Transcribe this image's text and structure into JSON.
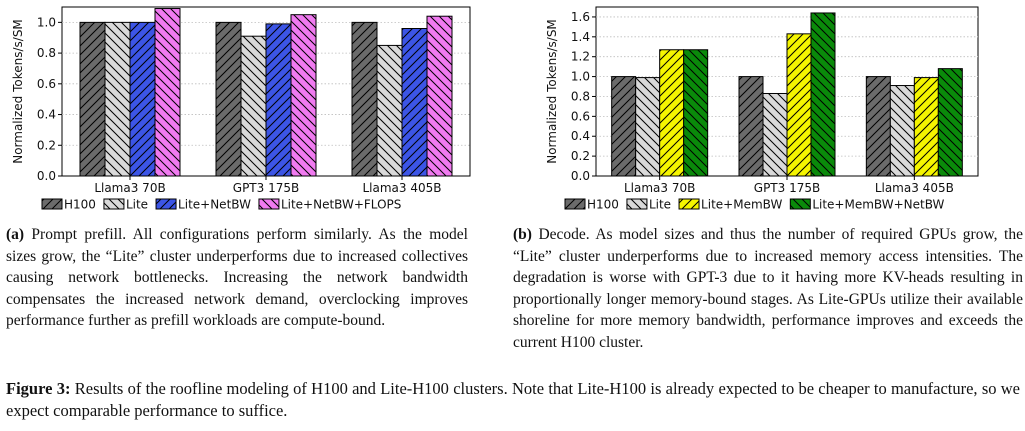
{
  "chart_data": [
    {
      "type": "bar",
      "ylabel": "Normalized Tokens/s/SM",
      "categories": [
        "Llama3 70B",
        "GPT3 175B",
        "Llama3 405B"
      ],
      "ylim": [
        0,
        1.1
      ],
      "yticks": [
        "0.0",
        "0.2",
        "0.4",
        "0.6",
        "0.8",
        "1.0"
      ],
      "ytick_values": [
        0,
        0.2,
        0.4,
        0.6,
        0.8,
        1.0
      ],
      "grid": true,
      "legend_position": "bottom",
      "series": [
        {
          "name": "H100",
          "values": [
            1.0,
            1.0,
            1.0
          ],
          "color": "#6b6b6b",
          "hatch": "/"
        },
        {
          "name": "Lite",
          "values": [
            1.0,
            0.91,
            0.85
          ],
          "color": "#d9d9d9",
          "hatch": "\\"
        },
        {
          "name": "Lite+NetBW",
          "values": [
            1.0,
            0.99,
            0.96
          ],
          "color": "#3c55e6",
          "hatch": "/"
        },
        {
          "name": "Lite+NetBW+FLOPS",
          "values": [
            1.09,
            1.05,
            1.04
          ],
          "color": "#f07af0",
          "hatch": "\\"
        }
      ]
    },
    {
      "type": "bar",
      "ylabel": "Normalized Tokens/s/SM",
      "categories": [
        "Llama3 70B",
        "GPT3 175B",
        "Llama3 405B"
      ],
      "ylim": [
        0,
        1.7
      ],
      "yticks": [
        "0.0",
        "0.2",
        "0.4",
        "0.6",
        "0.8",
        "1.0",
        "1.2",
        "1.4",
        "1.6"
      ],
      "ytick_values": [
        0,
        0.2,
        0.4,
        0.6,
        0.8,
        1.0,
        1.2,
        1.4,
        1.6
      ],
      "grid": true,
      "legend_position": "bottom",
      "series": [
        {
          "name": "H100",
          "values": [
            1.0,
            1.0,
            1.0
          ],
          "color": "#6b6b6b",
          "hatch": "/"
        },
        {
          "name": "Lite",
          "values": [
            0.99,
            0.83,
            0.91
          ],
          "color": "#d9d9d9",
          "hatch": "\\"
        },
        {
          "name": "Lite+MemBW",
          "values": [
            1.27,
            1.43,
            0.99
          ],
          "color": "#f5f500",
          "hatch": "/"
        },
        {
          "name": "Lite+MemBW+NetBW",
          "values": [
            1.27,
            1.64,
            1.08
          ],
          "color": "#0a8a0a",
          "hatch": "\\"
        }
      ]
    }
  ],
  "captions": {
    "a_label": "(a)",
    "a_text": " Prompt prefill. All configurations perform similarly. As the model sizes grow, the “Lite” cluster underperforms due to increased collectives causing network bottlenecks. Increasing the network bandwidth compensates the increased network demand, overclocking improves performance further as prefill workloads are compute-bound.",
    "b_label": "(b)",
    "b_text": " Decode. As model sizes and thus the number of required GPUs grow, the “Lite” cluster underperforms due to increased memory access intensities. The degradation is worse with GPT-3 due to it having more KV-heads resulting in proportionally longer memory-bound stages. As Lite-GPUs utilize their available shoreline for more memory bandwidth, performance improves and exceeds the current H100 cluster.",
    "figure_label": "Figure 3:",
    "figure_text": " Results of the roofline modeling of H100 and Lite-H100 clusters. Note that Lite-H100 is already expected to be cheaper to manufacture, so we expect comparable performance to suffice."
  }
}
